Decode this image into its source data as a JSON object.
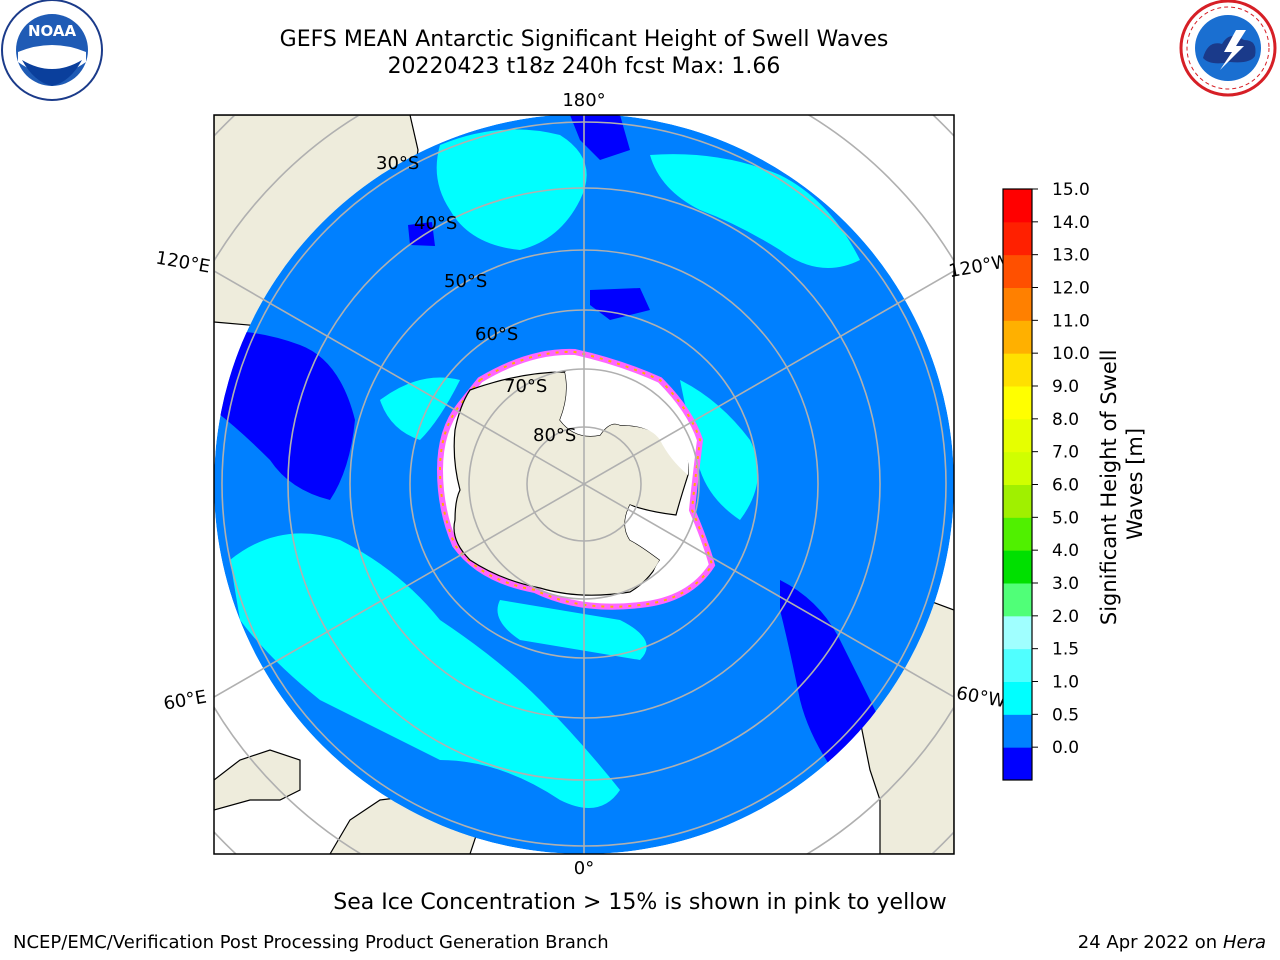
{
  "title": {
    "line1": "GEFS MEAN Antarctic Significant Height of Swell Waves",
    "line2": "20220423 t18z 240h fcst   Max: 1.66"
  },
  "logos": {
    "left": {
      "name": "noaa-logo",
      "text": "NOAA",
      "ring_text": "NATIONAL OCEANIC AND ATMOSPHERIC ADMINISTRATION · U.S. DEPARTMENT OF COMMERCE"
    },
    "right": {
      "name": "nws-logo",
      "ring_text": "NATIONAL WEATHER SERVICE"
    }
  },
  "map": {
    "projection": "south-polar-stereographic",
    "longitude_labels": {
      "top": "180°",
      "bottom": "0°",
      "upper_left": "120°E",
      "upper_right": "120°W",
      "lower_left": "60°E",
      "lower_right": "60°W"
    },
    "latitude_labels": [
      "30°S",
      "40°S",
      "50°S",
      "60°S",
      "70°S",
      "80°S"
    ],
    "colors": {
      "land": "#eeecdc",
      "ocean_low": "#0000ff",
      "ocean_0_5": "#0080ff",
      "ocean_1_0": "#00ffff",
      "ice_edge": "#ff66ff",
      "grid": "#b0b0b0"
    }
  },
  "colorbar": {
    "label": "Significant Height of Swell Waves [m]",
    "label_line1": "Significant Height of Swell",
    "label_line2": "Waves [m]",
    "ticks": [
      "15.0",
      "14.0",
      "13.0",
      "12.0",
      "11.0",
      "10.0",
      "9.0",
      "8.0",
      "7.0",
      "6.0",
      "5.0",
      "4.0",
      "3.0",
      "2.0",
      "1.5",
      "1.0",
      "0.5",
      "0.0"
    ],
    "colors_bottom_to_top": [
      "#0000ff",
      "#0080ff",
      "#00ffff",
      "#50ffff",
      "#a0ffff",
      "#50ff78",
      "#00e000",
      "#50f000",
      "#a0f000",
      "#d0ff00",
      "#e6ff00",
      "#ffff00",
      "#ffe000",
      "#ffb000",
      "#ff8000",
      "#ff5000",
      "#ff2000",
      "#ff0000"
    ]
  },
  "caption": "Sea Ice Concentration > 15% is shown in pink to yellow",
  "footer": {
    "left": "NCEP/EMC/Verification Post Processing Product Generation Branch",
    "right_date": "24 Apr 2022 on ",
    "right_host": "Hera"
  }
}
